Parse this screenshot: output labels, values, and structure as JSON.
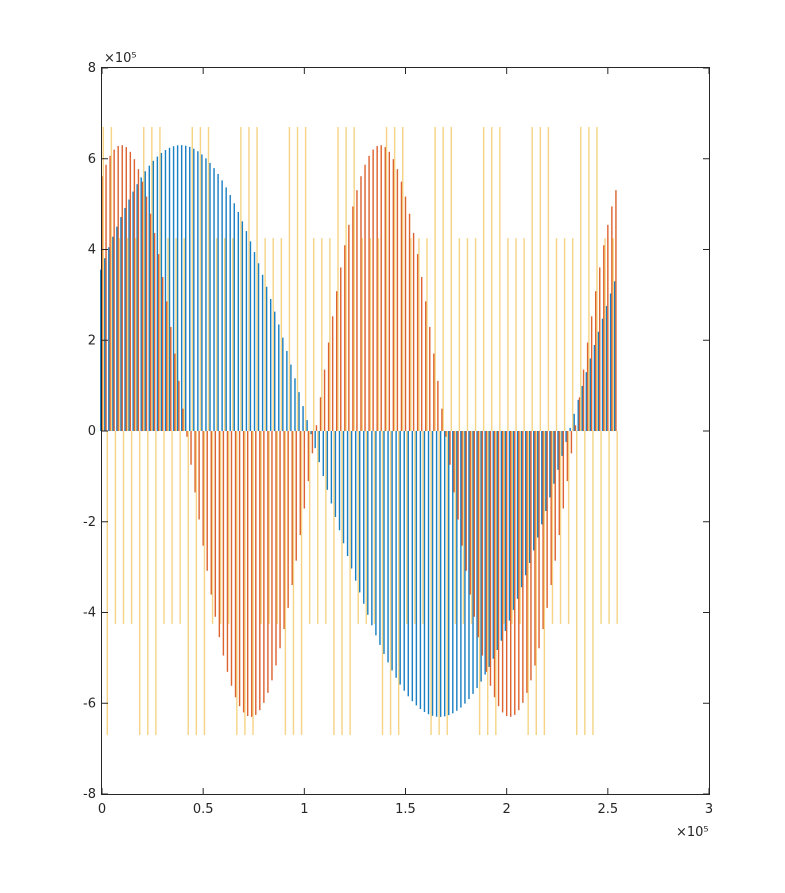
{
  "chart_data": {
    "type": "bar",
    "title": "",
    "xlabel": "",
    "ylabel": "",
    "x_exponent_label": "×10⁵",
    "y_exponent_label": "×10⁵",
    "xlim": [
      0,
      300000
    ],
    "ylim": [
      -800000,
      800000
    ],
    "x_ticks": [
      0,
      50000,
      100000,
      150000,
      200000,
      250000,
      300000
    ],
    "x_tick_labels": [
      "0",
      "0.5",
      "1",
      "1.5",
      "2",
      "2.5",
      "3"
    ],
    "y_ticks": [
      -800000,
      -600000,
      -400000,
      -200000,
      0,
      200000,
      400000,
      600000,
      800000
    ],
    "y_tick_labels": [
      "-8",
      "-6",
      "-4",
      "-2",
      "0",
      "2",
      "4",
      "6",
      "8"
    ],
    "grid": false,
    "legend": "none",
    "bar_count": 128,
    "bar_spacing_x": 2000,
    "series": [
      {
        "color": "#0072BD",
        "shape": "sine",
        "amplitude": 630000,
        "period": 256000,
        "phase": 0.6
      },
      {
        "color": "#D95319",
        "shape": "sine",
        "amplitude": 630000,
        "period": 128000,
        "phase": 1.1
      },
      {
        "color": "#EDB120",
        "shape": "square",
        "amplitude": 670000,
        "inner_amplitude": 425000
      }
    ]
  }
}
